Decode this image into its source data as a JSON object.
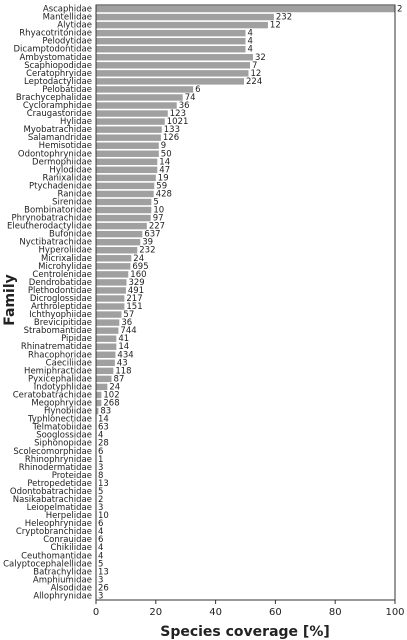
{
  "chart_data": {
    "type": "barh",
    "x_label": "Species coverage [%]",
    "y_label": "Family",
    "color": "#a0a0a0",
    "xlim": [
      0,
      100
    ],
    "xticks": [
      0,
      20,
      40,
      60,
      80,
      100
    ],
    "categories": [
      "Ascaphidae",
      "Mantellidae",
      "Alytidae",
      "Rhyacotritonidae",
      "Pelodytidae",
      "Dicamptodontidae",
      "Ambystomatidae",
      "Scaphiopodidae",
      "Ceratophryidae",
      "Leptodactylidae",
      "Pelobatidae",
      "Brachycephalidae",
      "Cycloramphidae",
      "Craugastoridae",
      "Hylidae",
      "Myobatrachidae",
      "Salamandridae",
      "Hemisotidae",
      "Odontophrynidae",
      "Dermophiidae",
      "Hylodidae",
      "Ranixalidae",
      "Ptychadenidae",
      "Ranidae",
      "Sirenidae",
      "Bombinatoridae",
      "Phrynobatrachidae",
      "Eleutherodactylidae",
      "Bufonidae",
      "Nyctibatrachidae",
      "Hyperoliidae",
      "Micrixalidae",
      "Microhylidae",
      "Centrolenidae",
      "Dendrobatidae",
      "Plethodontidae",
      "Dicroglossidae",
      "Arthroleptidae",
      "Ichthyophiidae",
      "Brevicipitidae",
      "Strabomantidae",
      "Pipidae",
      "Rhinatrematidae",
      "Rhacophoridae",
      "Caeciliidae",
      "Hemiphractidae",
      "Pyxicephalidae",
      "Indotyphlidae",
      "Ceratobatrachidae",
      "Megophryidae",
      "Hynobiidae",
      "Typhlonectidae",
      "Telmatobiidae",
      "Sooglossidae",
      "Siphonopidae",
      "Scolecomorphidae",
      "Rhinophrynidae",
      "Rhinodermatidae",
      "Proteidae",
      "Petropedetidae",
      "Odontobatrachidae",
      "Nasikabatrachidae",
      "Leiopelmatidae",
      "Herpelidae",
      "Heleophrynidae",
      "Cryptobranchidae",
      "Conrauidae",
      "Chikilidae",
      "Ceuthomantidae",
      "Calyptocephalellidae",
      "Batrachylidae",
      "Amphiumidae",
      "Alsodidae",
      "Allophrynidae"
    ],
    "values": [
      100,
      59.5,
      57.5,
      50,
      50,
      50,
      52.5,
      51.5,
      51,
      49.5,
      32.5,
      29,
      27,
      24,
      23,
      22,
      21.7,
      21,
      21,
      20.5,
      20.5,
      20,
      19.5,
      19.3,
      18.5,
      18.5,
      18.3,
      17,
      15.5,
      14.8,
      13.8,
      11.8,
      11.5,
      10.8,
      10.2,
      10,
      9.5,
      9.5,
      8.5,
      7.8,
      7.5,
      6.8,
      6.8,
      6.5,
      6.3,
      5.8,
      5.2,
      3.8,
      1.8,
      1.8,
      0.8,
      0,
      0,
      0,
      0,
      0,
      0,
      0,
      0,
      0,
      0,
      0,
      0,
      0,
      0,
      0,
      0,
      0,
      0,
      0,
      0,
      0,
      0,
      0
    ],
    "species_counts": [
      2,
      232,
      12,
      4,
      4,
      4,
      32,
      7,
      12,
      224,
      6,
      74,
      36,
      123,
      1021,
      133,
      126,
      9,
      50,
      14,
      47,
      19,
      59,
      428,
      5,
      10,
      97,
      227,
      637,
      39,
      232,
      24,
      695,
      160,
      329,
      491,
      217,
      151,
      57,
      36,
      744,
      41,
      14,
      434,
      43,
      118,
      87,
      24,
      102,
      268,
      83,
      14,
      63,
      4,
      28,
      6,
      1,
      3,
      8,
      13,
      5,
      2,
      3,
      10,
      6,
      4,
      6,
      4,
      4,
      5,
      13,
      3,
      26,
      3
    ]
  }
}
